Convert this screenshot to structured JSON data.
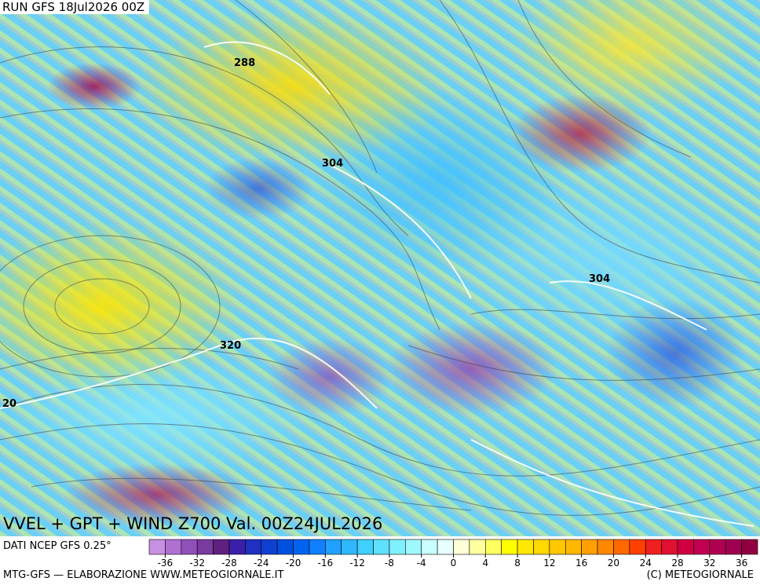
{
  "header": {
    "run": "RUN GFS 18Jul2026 00Z"
  },
  "contour_labels": [
    "288",
    "304",
    "304",
    "320",
    "20"
  ],
  "title": "VVEL + GPT + WIND Z700 Val. 00Z24JUL2026",
  "source": "DATI NCEP GFS 0.25°",
  "colorbar": {
    "lim": [
      -38,
      38
    ],
    "ticks": [
      -36,
      -32,
      -28,
      -24,
      -20,
      -16,
      -12,
      -8,
      -4,
      0,
      4,
      8,
      12,
      16,
      20,
      24,
      28,
      32,
      36
    ],
    "colors": [
      "#c890e0",
      "#b070d0",
      "#9050b8",
      "#7a3aa0",
      "#602080",
      "#3a20a8",
      "#2030c0",
      "#1040d0",
      "#0050e0",
      "#0064f0",
      "#1080ff",
      "#20a0ff",
      "#30b8ff",
      "#40d0ff",
      "#60e0ff",
      "#80f0ff",
      "#a0f8ff",
      "#c8ffff",
      "#e8ffff",
      "#ffffd8",
      "#ffffa0",
      "#ffff60",
      "#ffff00",
      "#ffe800",
      "#ffd800",
      "#ffc800",
      "#ffb800",
      "#ffa000",
      "#ff8800",
      "#ff6800",
      "#ff4000",
      "#f02020",
      "#e01030",
      "#d00040",
      "#c00050",
      "#b00050",
      "#a00050",
      "#900040"
    ]
  },
  "footer": {
    "left": "MTG-GFS — ELABORAZIONE WWW.METEOGIORNALE.IT",
    "right": "(C) METEOGIORNALE"
  }
}
